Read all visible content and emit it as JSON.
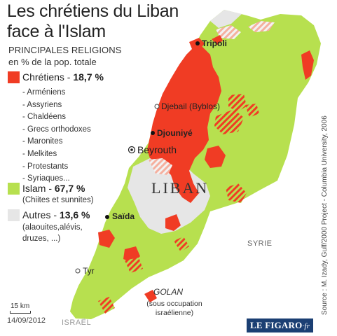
{
  "title_line1": "Les chrétiens du Liban",
  "title_line2": "face à l'Islam",
  "subtitle_line1": "PRINCIPALES RELIGIONS",
  "subtitle_line2": "en % de la pop. totale",
  "legend": {
    "christians": {
      "label": "Chrétiens - ",
      "value": "18,7 %",
      "color": "#f03c24"
    },
    "christian_denominations": [
      "- Arméniens",
      "- Assyriens",
      "- Chaldéens",
      "- Grecs orthodoxes",
      "- Maronites",
      "- Melkites",
      "- Protestants",
      "- Syriaques..."
    ],
    "islam": {
      "label": "Islam - ",
      "value": "67,7 %",
      "note": "(Chiites et sunnites)",
      "color": "#b7e04f"
    },
    "others": {
      "label": "Autres - ",
      "value": "13,6 %",
      "note_line1": "(alaouites,alévis,",
      "note_line2": "druzes, ...)",
      "color": "#e6e6e6"
    }
  },
  "map": {
    "country_label": "LIBAN",
    "cities": {
      "tripoli": "Tripoli",
      "djebail": "Djebail (Byblos)",
      "djouniye": "Djouniyé",
      "beyrouth": "Beyrouth",
      "saida": "Saïda",
      "tyr": "Tyr"
    },
    "neighbours": {
      "syria": "SYRIE",
      "israel": "ISRAËL"
    },
    "golan_title": "GOLAN",
    "golan_note_line1": "(sous occupation",
    "golan_note_line2": "israélienne)",
    "scale": "15 km"
  },
  "source": "Source : M. Izady, Gulf/2000 Project - Columbia University, 2006",
  "date": "14/09/2012",
  "logo": {
    "main": "LE FIGARO",
    "suffix": "·fr"
  }
}
